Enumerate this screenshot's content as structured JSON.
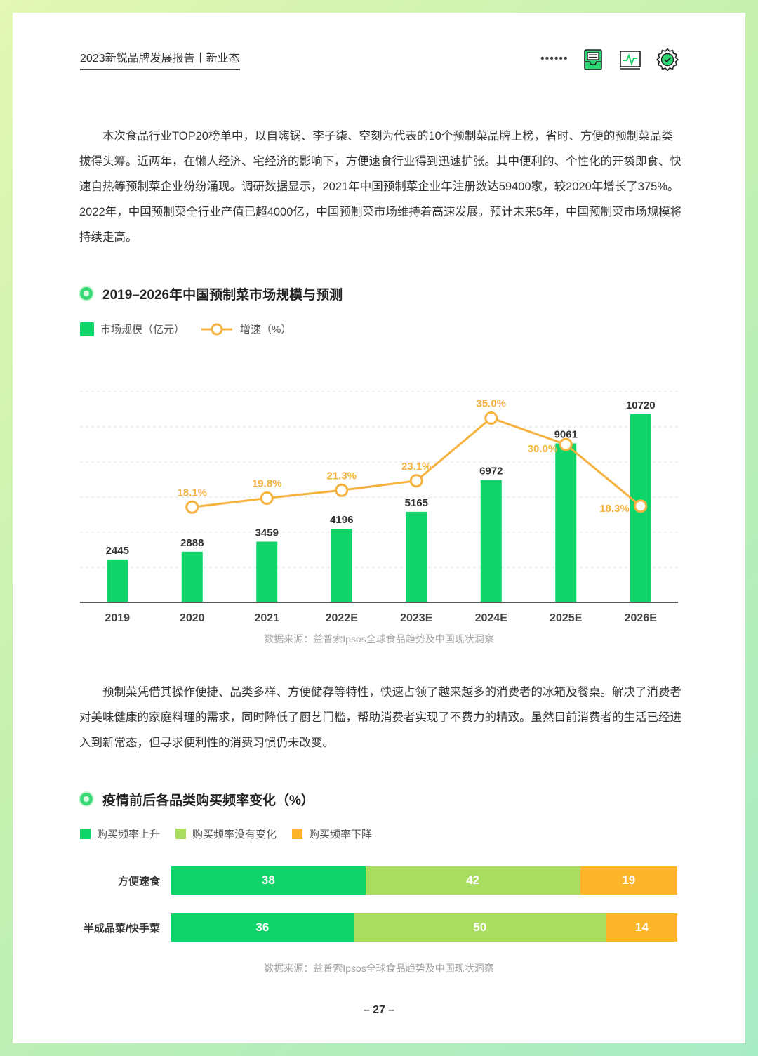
{
  "header": {
    "doc_title": "2023新锐品牌发展报告丨新业态",
    "dots": "••••••",
    "icons": [
      "inbox-icon",
      "chart-monitor-icon",
      "gear-check-icon"
    ]
  },
  "paragraph1": "本次食品行业TOP20榜单中，以自嗨锅、李子柒、空刻为代表的10个预制菜品牌上榜，省时、方便的预制菜品类拔得头筹。近两年，在懒人经济、宅经济的影响下，方便速食行业得到迅速扩张。其中便利的、个性化的开袋即食、快速自热等预制菜企业纷纷涌现。调研数据显示，2021年中国预制菜企业年注册数达59400家，较2020年增长了375%。2022年，中国预制菜全行业产值已超4000亿，中国预制菜市场维持着高速发展。预计未来5年，中国预制菜市场规模将持续走高。",
  "chart1_title": "2019–2026年中国预制菜市场规模与预测",
  "chart1_source": "数据来源：益普索Ipsos全球食品趋势及中国现状洞察",
  "paragraph2": "预制菜凭借其操作便捷、品类多样、方便储存等特性，快速占领了越来越多的消费者的冰箱及餐桌。解决了消费者对美味健康的家庭料理的需求，同时降低了厨艺门槛，帮助消费者实现了不费力的精致。虽然目前消费者的生活已经进入到新常态，但寻求便利性的消费习惯仍未改变。",
  "chart2_title": "疫情前后各品类购买频率变化（%）",
  "chart2_source": "数据来源：益普索Ipsos全球食品趋势及中国现状洞察",
  "page_number": "– 27 –",
  "colors": {
    "green": "#0fd46a",
    "light_green": "#a8dd5f",
    "orange": "#fdb52a",
    "line_orange": "#f5b23e"
  },
  "chart_data": [
    {
      "type": "bar",
      "title": "2019–2026年中国预制菜市场规模与预测",
      "categories": [
        "2019",
        "2020",
        "2021",
        "2022E",
        "2023E",
        "2024E",
        "2025E",
        "2026E"
      ],
      "series": [
        {
          "name": "市场规模（亿元）",
          "type": "bar",
          "values": [
            2445,
            2888,
            3459,
            4196,
            5165,
            6972,
            9061,
            10720
          ],
          "labels": [
            "2445",
            "2888",
            "3459",
            "4196",
            "5165",
            "6972",
            "9061",
            "10720"
          ]
        },
        {
          "name": "增速（%）",
          "type": "line",
          "values": [
            null,
            18.1,
            19.8,
            21.3,
            23.1,
            35.0,
            30.0,
            18.3
          ],
          "labels": [
            "",
            "18.1%",
            "19.8%",
            "21.3%",
            "23.1%",
            "35.0%",
            "30.0%",
            "18.3%"
          ]
        }
      ],
      "ylim": [
        0,
        12000
      ],
      "y2lim": [
        0,
        40
      ],
      "grid": true,
      "legend": "top-left"
    },
    {
      "type": "bar",
      "stacked": true,
      "orientation": "horizontal",
      "title": "疫情前后各品类购买频率变化（%）",
      "categories": [
        "方便速食",
        "半成品菜/快手菜"
      ],
      "series": [
        {
          "name": "购买频率上升",
          "values": [
            38,
            36
          ]
        },
        {
          "name": "购买频率没有变化",
          "values": [
            42,
            50
          ]
        },
        {
          "name": "购买频率下降",
          "values": [
            19,
            14
          ]
        }
      ],
      "legend": "top-left"
    }
  ]
}
